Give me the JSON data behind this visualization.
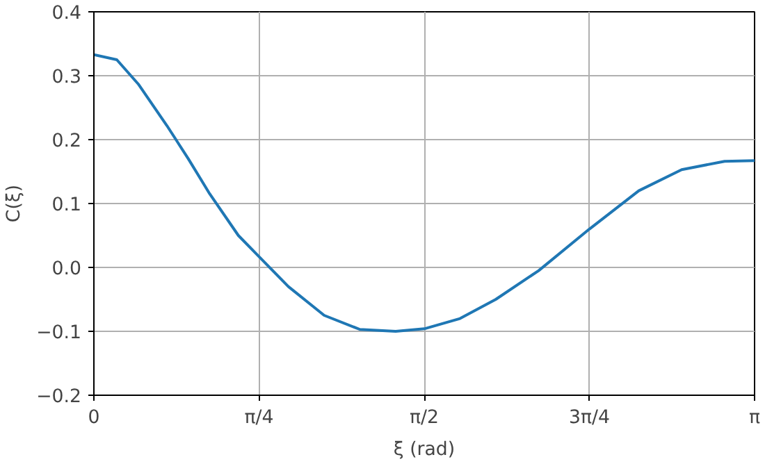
{
  "chart_data": {
    "type": "line",
    "xlabel": "ξ (rad)",
    "ylabel": "C(ξ)",
    "x": [
      0,
      0.109,
      0.211,
      0.347,
      0.449,
      0.551,
      0.687,
      0.785,
      0.925,
      1.095,
      1.265,
      1.435,
      1.571,
      1.741,
      1.911,
      2.115,
      2.356,
      2.591,
      2.795,
      2.999,
      3.1416
    ],
    "series": [
      {
        "color": "#1f77b4",
        "values": [
          0.333,
          0.325,
          0.287,
          0.222,
          0.17,
          0.115,
          0.05,
          0.017,
          -0.03,
          -0.075,
          -0.097,
          -0.1,
          -0.096,
          -0.08,
          -0.05,
          -0.005,
          0.06,
          0.12,
          0.153,
          0.166,
          0.167
        ]
      }
    ],
    "xlim": [
      0,
      3.1416
    ],
    "ylim": [
      -0.2,
      0.4
    ],
    "xticks": [
      0,
      {
        "value": 0.7854,
        "label": "π/4"
      },
      {
        "value": 1.5708,
        "label": "π/2"
      },
      {
        "value": 2.3562,
        "label": "3π/4"
      },
      {
        "value": 3.1416,
        "label": "π"
      }
    ],
    "yticks": [
      {
        "value": -0.2,
        "label": "−0.2"
      },
      {
        "value": -0.1,
        "label": "−0.1"
      },
      {
        "value": 0,
        "label": "0.0"
      },
      0.1,
      0.2,
      0.3,
      0.4
    ],
    "grid": true,
    "marker": "none",
    "line_style": "solid"
  }
}
